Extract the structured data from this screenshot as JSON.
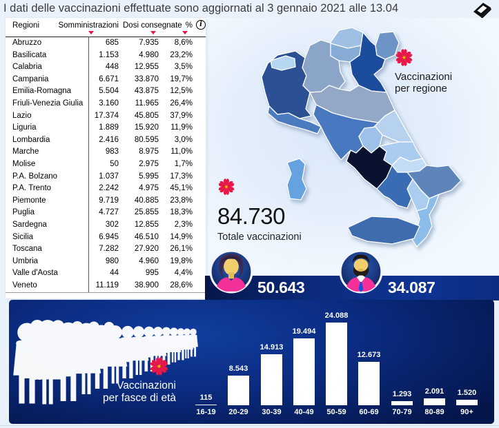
{
  "header": {
    "title": "I dati delle vaccinazioni effettuate sono aggiornati al 3 gennaio 2021 alle 13.04"
  },
  "table": {
    "columns": [
      "Regioni",
      "Somministrazioni",
      "Dosi consegnate",
      "%"
    ],
    "info_icon": "info-icon",
    "rows": [
      [
        "Abruzzo",
        "685",
        "7.935",
        "8,6%"
      ],
      [
        "Basilicata",
        "1.153",
        "4.980",
        "23,2%"
      ],
      [
        "Calabria",
        "448",
        "12.955",
        "3,5%"
      ],
      [
        "Campania",
        "6.671",
        "33.870",
        "19,7%"
      ],
      [
        "Emilia-Romagna",
        "5.504",
        "43.875",
        "12,5%"
      ],
      [
        "Friuli-Venezia Giulia",
        "3.160",
        "11.965",
        "26,4%"
      ],
      [
        "Lazio",
        "17.374",
        "45.805",
        "37,9%"
      ],
      [
        "Liguria",
        "1.889",
        "15.920",
        "11,9%"
      ],
      [
        "Lombardia",
        "2.416",
        "80.595",
        "3,0%"
      ],
      [
        "Marche",
        "983",
        "8.975",
        "11,0%"
      ],
      [
        "Molise",
        "50",
        "2.975",
        "1,7%"
      ],
      [
        "P.A. Bolzano",
        "1.037",
        "5.995",
        "17,3%"
      ],
      [
        "P.A. Trento",
        "2.242",
        "4.975",
        "45,1%"
      ],
      [
        "Piemonte",
        "9.719",
        "40.885",
        "23,8%"
      ],
      [
        "Puglia",
        "4.727",
        "25.855",
        "18,3%"
      ],
      [
        "Sardegna",
        "302",
        "12.855",
        "2,3%"
      ],
      [
        "Sicilia",
        "6.945",
        "46.510",
        "14,9%"
      ],
      [
        "Toscana",
        "7.282",
        "27.920",
        "26,1%"
      ],
      [
        "Umbria",
        "980",
        "4.960",
        "19,8%"
      ],
      [
        "Valle d'Aosta",
        "44",
        "995",
        "4,4%"
      ],
      [
        "Veneto",
        "11.119",
        "38.900",
        "28,6%"
      ]
    ]
  },
  "map": {
    "caption": [
      "Vaccinazioni",
      "per regione"
    ],
    "regions": [
      {
        "name": "Piemonte",
        "color": "#2b5093"
      },
      {
        "name": "Valle d'Aosta",
        "color": "#b5d7f2"
      },
      {
        "name": "Lombardia",
        "color": "#8aa5c8"
      },
      {
        "name": "P.A. Bolzano",
        "color": "#9fc0e2"
      },
      {
        "name": "P.A. Trento",
        "color": "#86abd4"
      },
      {
        "name": "Veneto",
        "color": "#1c4c9c"
      },
      {
        "name": "Friuli-Venezia Giulia",
        "color": "#6d94c6"
      },
      {
        "name": "Liguria",
        "color": "#4a7bbf"
      },
      {
        "name": "Emilia-Romagna",
        "color": "#93a7c7"
      },
      {
        "name": "Toscana",
        "color": "#4878c0"
      },
      {
        "name": "Umbria",
        "color": "#9dc1e8"
      },
      {
        "name": "Marche",
        "color": "#b7d2ef"
      },
      {
        "name": "Lazio",
        "color": "#0a1230"
      },
      {
        "name": "Abruzzo",
        "color": "#a9ccf0"
      },
      {
        "name": "Molise",
        "color": "#c2dcf6"
      },
      {
        "name": "Campania",
        "color": "#3a6cb4"
      },
      {
        "name": "Puglia",
        "color": "#5e85b9"
      },
      {
        "name": "Basilicata",
        "color": "#aacdf0"
      },
      {
        "name": "Calabria",
        "color": "#8cbdea"
      },
      {
        "name": "Sicilia",
        "color": "#3e6cae"
      },
      {
        "name": "Sardegna",
        "color": "#66a2e0"
      }
    ]
  },
  "totals": {
    "value": "84.730",
    "label": "Totale vaccinazioni"
  },
  "gender": {
    "female_value": "50.643",
    "male_value": "34.087"
  },
  "age": {
    "caption": [
      "Vaccinazioni",
      "per fasce di età"
    ]
  },
  "chart_data": {
    "type": "bar",
    "title": "Vaccinazioni per fasce di età",
    "categories": [
      "16-19",
      "20-29",
      "30-39",
      "40-49",
      "50-59",
      "60-69",
      "70-79",
      "80-89",
      "90+"
    ],
    "values": [
      115,
      8543,
      14913,
      19494,
      24088,
      12673,
      1293,
      2091,
      1520
    ],
    "labels": [
      "115",
      "8.543",
      "14.913",
      "19.494",
      "24.088",
      "12.673",
      "1.293",
      "2.091",
      "1.520"
    ],
    "xlabel": "",
    "ylabel": "",
    "ylim": [
      0,
      24088
    ],
    "grid": false,
    "legend": "none",
    "bar_color": "#ffffff",
    "background": "#0b2c82"
  },
  "icons": {
    "eraser": "clear-selections-eraser-icon",
    "info": "info-icon",
    "filter": "filter-triangle-icon",
    "flower": "flower-icon",
    "female": "female-avatar-icon",
    "male": "male-avatar-icon",
    "crowd": "crowd-silhouette-illustration"
  },
  "colors": {
    "accent_red": "#e8174a",
    "flower_center": "#f7a800",
    "dark_navy": "#0b2c82",
    "avatar_pink": "#f5309a",
    "page_bg": "#e9f2fb"
  }
}
